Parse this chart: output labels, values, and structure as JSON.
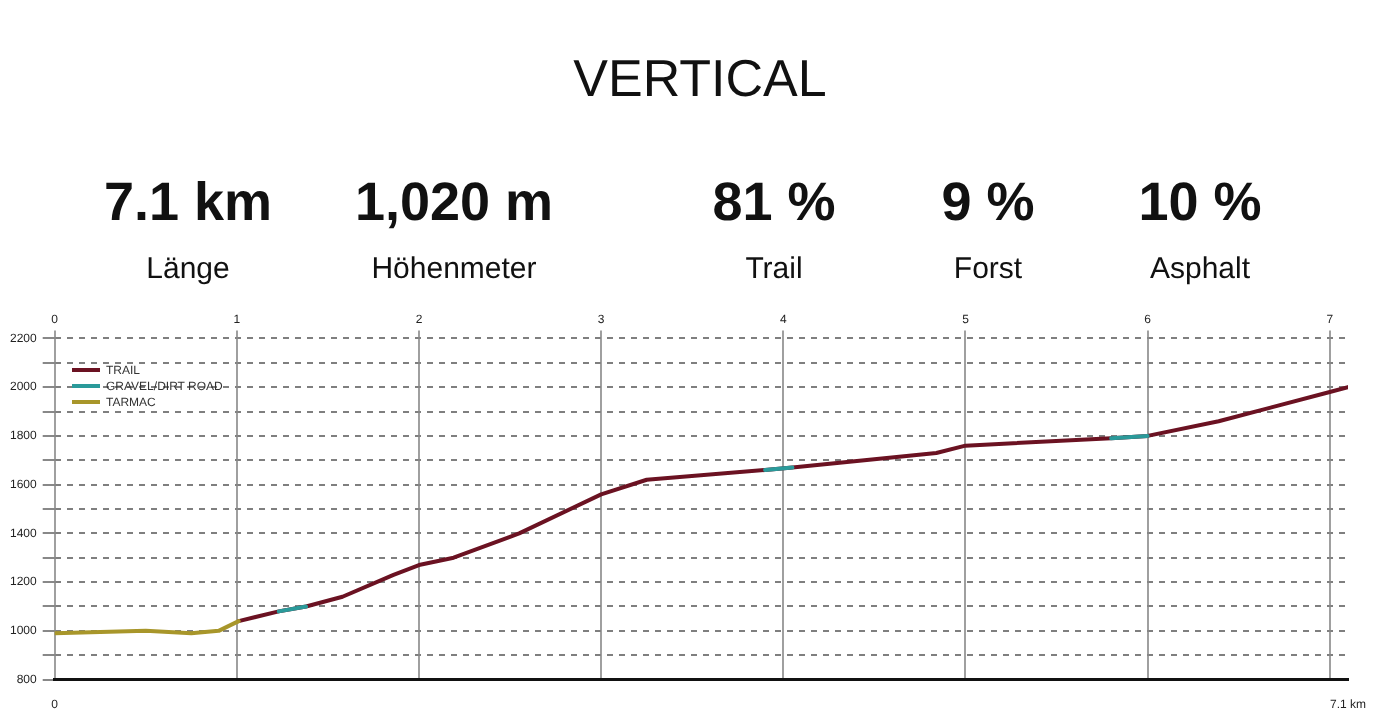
{
  "chart_data": {
    "type": "line",
    "title": "VERTICAL",
    "annotations": [
      "7.1 km",
      "Länge",
      "1,020 m",
      "Höhenmeter",
      "81 %",
      "Trail",
      "9 %",
      "Forst",
      "10 %",
      "Asphalt"
    ],
    "x": [
      0,
      0.5,
      0.75,
      0.9,
      1.01,
      1.23,
      1.38,
      1.58,
      1.86,
      2.0,
      2.19,
      2.55,
      3.0,
      3.25,
      3.9,
      4.05,
      4.84,
      5.0,
      5.8,
      6.0,
      6.39,
      7.0,
      7.1
    ],
    "series": [
      {
        "name": "TRAIL",
        "color": "#6b1222",
        "values": [
          null,
          null,
          null,
          null,
          1040,
          1080,
          1100,
          1140,
          1230,
          1270,
          1300,
          1400,
          1560,
          1620,
          1660,
          1670,
          1730,
          1760,
          1790,
          1800,
          1860,
          1980,
          2000
        ]
      },
      {
        "name": "GRAVEL/DIRT ROAD",
        "color": "#2a9a9a",
        "values": [
          null,
          null,
          null,
          null,
          null,
          1080,
          1100,
          null,
          null,
          null,
          null,
          null,
          null,
          null,
          1660,
          1670,
          null,
          null,
          1790,
          1800,
          null,
          null,
          null
        ]
      },
      {
        "name": "TARMAC",
        "color": "#a8962a",
        "values": [
          990,
          1000,
          990,
          1000,
          1040,
          null,
          null,
          null,
          null,
          null,
          null,
          null,
          null,
          null,
          null,
          null,
          null,
          null,
          null,
          null,
          null,
          null,
          null
        ]
      }
    ],
    "xlim": [
      0,
      7.1
    ],
    "xticks": [
      0,
      {
        "value": 7.1,
        "label": "7.1 km"
      }
    ],
    "x2lim": [
      0,
      7.1
    ],
    "x2ticks": [
      0,
      1,
      2,
      3,
      4,
      5,
      6,
      7
    ],
    "ylim": [
      800,
      2200
    ],
    "yticks": [
      800,
      {
        "value": 900,
        "label": null
      },
      1000,
      {
        "value": 1100,
        "label": null
      },
      1200,
      {
        "value": 1300,
        "label": null
      },
      1400,
      {
        "value": 1500,
        "label": null
      },
      1600,
      {
        "value": 1700,
        "label": null
      },
      1800,
      {
        "value": 1900,
        "label": null
      },
      2000,
      {
        "value": 2100,
        "label": null
      },
      2200
    ],
    "grid": true,
    "legend": "top left",
    "marker": "none",
    "line_style": "solid"
  }
}
